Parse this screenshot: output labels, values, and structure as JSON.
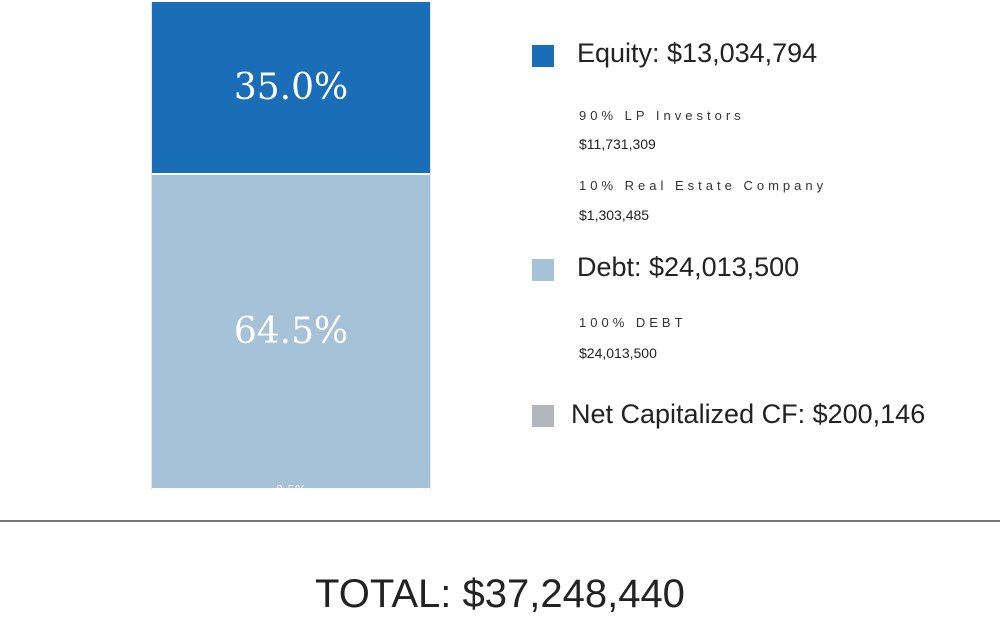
{
  "chart_data": {
    "type": "bar",
    "stacked": true,
    "segments": [
      {
        "name": "Equity",
        "percent": 35.0,
        "label": "35.0%",
        "color": "#1a6db7"
      },
      {
        "name": "Debt",
        "percent": 64.5,
        "label": "64.5%",
        "color": "#a5c2d8"
      },
      {
        "name": "Net Capitalized CF",
        "percent": 0.5,
        "label": "0.5%",
        "color": "#b3b7bb"
      }
    ]
  },
  "legend": {
    "equity": {
      "title": "Equity: $13,034,794",
      "color": "#1a6db7",
      "items": [
        {
          "label": "90% LP Investors",
          "amount": "$11,731,309"
        },
        {
          "label": "10% Real Estate Company",
          "amount": "$1,303,485"
        }
      ]
    },
    "debt": {
      "title": "Debt: $24,013,500",
      "color": "#a5c2d8",
      "items": [
        {
          "label": "100% DEBT",
          "amount": "$24,013,500"
        }
      ]
    },
    "net_cf": {
      "title": "Net Capitalized CF: $200,146",
      "color": "#b3b7bb"
    }
  },
  "total": "TOTAL: $37,248,440"
}
